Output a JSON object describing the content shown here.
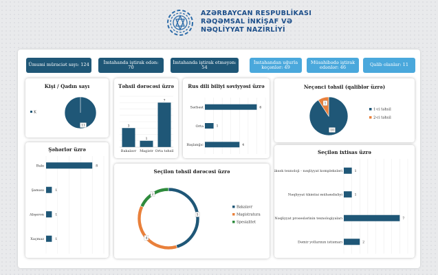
{
  "header": {
    "line1": "AZƏRBAYCAN RESPUBLİKASI",
    "line2": "RƏQƏMSAL İNKİŞAF VƏ",
    "line3": "NƏQLİYYAT NAZİRLİYİ"
  },
  "kpis": [
    {
      "label": "Ümumi müraciət sayı: 124",
      "style": "dark"
    },
    {
      "label": "İmtahanda iştirak edən: 70",
      "style": "dark"
    },
    {
      "label": "İmtahanda iştirak etməyən: 54",
      "style": "dark"
    },
    {
      "label": "İmtahandan uğurla keçənlər: 49",
      "style": "light"
    },
    {
      "label": "Müsahibədə iştirak edənlər: 46",
      "style": "light"
    },
    {
      "label": "Qalib olanlar: 11",
      "style": "light"
    }
  ],
  "colors": {
    "navy": "#1f5777",
    "orange": "#e9803b",
    "green": "#2e8b3c",
    "light_blue": "#4aa8dc"
  },
  "chart_data": [
    {
      "id": "gender",
      "type": "pie",
      "title": "Kişi / Qadın sayı",
      "labels": [
        "K"
      ],
      "values": [
        11
      ],
      "legend": "left"
    },
    {
      "id": "education",
      "type": "bar",
      "title": "Təhsil dərəcəsi üzrə",
      "categories": [
        "Bakalavr",
        "Magistr",
        "Orta təhsil"
      ],
      "values": [
        3,
        1,
        7
      ],
      "ylim": [
        0,
        8
      ],
      "grid": true
    },
    {
      "id": "russian",
      "type": "bar",
      "orientation": "horizontal",
      "title": "Rus dili biliyi səviyyəsi üzrə",
      "categories": [
        "Sərbəst",
        "Orta",
        "Başlanğıc"
      ],
      "values": [
        6,
        1,
        4
      ],
      "xlim": [
        0,
        7
      ],
      "grid": true
    },
    {
      "id": "which_education",
      "type": "pie",
      "title": "Neçənci təhsil (qaliblər üzrə)",
      "labels": [
        "1-ci təhsil",
        "2-ci təhsil"
      ],
      "values": [
        10,
        1
      ],
      "legend": "right"
    },
    {
      "id": "cities",
      "type": "bar",
      "orientation": "horizontal",
      "title": "Şəhərlər üzrə",
      "categories": [
        "Bakı",
        "Şamaxı",
        "Abşeron",
        "Xaçmaz"
      ],
      "values": [
        8,
        1,
        1,
        1
      ],
      "xlim": [
        0,
        10
      ],
      "grid": true
    },
    {
      "id": "chosen_education",
      "type": "pie",
      "variant": "donut",
      "title": "Seçilən təhsil dərəcəsi üzrə",
      "labels": [
        "Bakalavr",
        "Magistratura",
        "Spesialitet"
      ],
      "values": [
        5,
        4,
        2
      ],
      "legend": "right"
    },
    {
      "id": "specialty",
      "type": "bar",
      "orientation": "horizontal",
      "title": "Seçilən ixtisas üzrə",
      "categories": [
        "Yüksək texnoloji - nəqliyyat kompleksləri",
        "Nəqliyyat tikintisi mühəndisliyi",
        "Nəqliyyat proseslərinin texnologiyaları",
        "Dəmir yollarının istismarı"
      ],
      "values": [
        1,
        1,
        7,
        2
      ],
      "xlim": [
        0,
        8
      ],
      "grid": true
    }
  ]
}
